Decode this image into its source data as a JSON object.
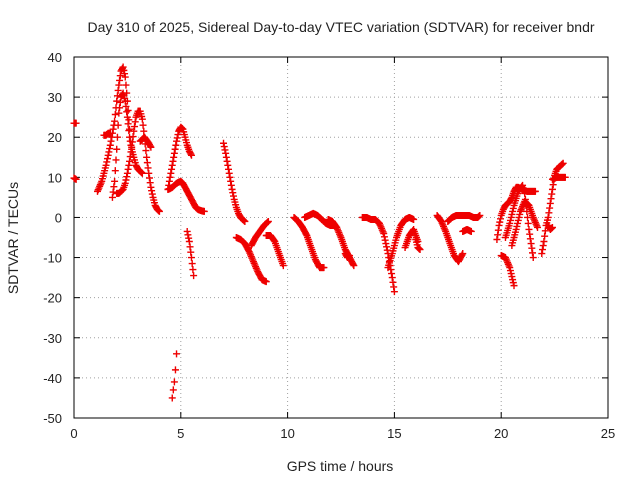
{
  "chart_data": {
    "type": "scatter",
    "title": "Day 310 of 2025, Sidereal Day-to-day VTEC variation (SDTVAR) for receiver bndr",
    "xlabel": "GPS time / hours",
    "ylabel": "SDTVAR / TECUs",
    "xlim": [
      0,
      25
    ],
    "ylim": [
      -50,
      40
    ],
    "xticks": [
      0,
      5,
      10,
      15,
      20,
      25
    ],
    "yticks": [
      -50,
      -40,
      -30,
      -20,
      -10,
      0,
      10,
      20,
      30,
      40
    ],
    "grid": true,
    "legend": "none",
    "marker": "+",
    "color": "#ee0000",
    "segments": [
      {
        "x": [
          0.0,
          0.1
        ],
        "y": [
          23.5,
          23.5
        ]
      },
      {
        "x": [
          0.0,
          0.1
        ],
        "y": [
          9.8,
          9.5
        ]
      },
      {
        "x": [
          1.1,
          1.3,
          1.5,
          1.7,
          1.9,
          2.0,
          2.1,
          2.2,
          2.3,
          2.4,
          2.5,
          2.6
        ],
        "y": [
          6.5,
          9.0,
          13.0,
          18.0,
          24.0,
          29.0,
          33.0,
          36.5,
          37.5,
          35.0,
          29.0,
          22.0
        ]
      },
      {
        "x": [
          1.4,
          1.5,
          1.6,
          1.7
        ],
        "y": [
          20.5,
          20.5,
          21.0,
          21.0
        ]
      },
      {
        "x": [
          1.8,
          1.9,
          2.0,
          2.1,
          2.2,
          2.3,
          2.4,
          2.5,
          2.6,
          2.7,
          2.8,
          2.9,
          3.0,
          3.1,
          3.2
        ],
        "y": [
          5.0,
          9.0,
          17.0,
          26.0,
          30.0,
          31.0,
          29.0,
          25.0,
          20.0,
          17.0,
          15.0,
          13.0,
          12.0,
          11.5,
          11.0
        ]
      },
      {
        "x": [
          2.0,
          2.1,
          2.2,
          2.3,
          2.4,
          2.5,
          2.6,
          2.7,
          2.8,
          2.9,
          3.0,
          3.1,
          3.2,
          3.3,
          3.4,
          3.5,
          3.6,
          3.7,
          3.8,
          3.9,
          4.0
        ],
        "y": [
          6.0,
          6.0,
          6.5,
          7.0,
          8.5,
          11.0,
          14.0,
          17.5,
          21.5,
          25.0,
          26.5,
          26.5,
          24.5,
          20.0,
          15.0,
          11.0,
          7.5,
          5.0,
          3.0,
          2.0,
          1.5
        ]
      },
      {
        "x": [
          3.1,
          3.3,
          3.5,
          3.6
        ],
        "y": [
          19.0,
          20.0,
          18.5,
          17.5
        ]
      },
      {
        "x": [
          4.4,
          4.5,
          4.6,
          4.7,
          4.8,
          4.9,
          5.0,
          5.1,
          5.2,
          5.3,
          5.4,
          5.5
        ],
        "y": [
          7.0,
          10.0,
          13.0,
          16.0,
          19.0,
          21.5,
          22.5,
          22.0,
          20.0,
          18.0,
          16.5,
          15.5
        ]
      },
      {
        "x": [
          4.4,
          4.5,
          4.6,
          4.7,
          4.8,
          4.9,
          5.0,
          5.1,
          5.2,
          5.3,
          5.4,
          5.5,
          5.6,
          5.7,
          5.8,
          5.9,
          6.0,
          6.1
        ],
        "y": [
          7.0,
          7.2,
          7.5,
          8.0,
          8.5,
          8.8,
          9.0,
          8.5,
          7.5,
          6.5,
          5.5,
          4.5,
          3.5,
          2.5,
          2.0,
          1.8,
          1.6,
          1.5
        ]
      },
      {
        "x": [
          5.3,
          5.4,
          5.5,
          5.6
        ],
        "y": [
          -3.5,
          -6.0,
          -10.0,
          -14.5
        ]
      },
      {
        "x": [
          4.6,
          4.65,
          4.7,
          4.75,
          4.8
        ],
        "y": [
          -45.0,
          -43.0,
          -41.0,
          -38.0,
          -34.0
        ]
      },
      {
        "x": [
          7.0,
          7.1,
          7.2,
          7.3,
          7.4,
          7.5,
          7.6,
          7.7,
          7.8,
          7.9,
          8.0
        ],
        "y": [
          18.5,
          16.0,
          13.0,
          10.0,
          7.0,
          4.5,
          2.5,
          1.0,
          0.0,
          -0.5,
          -1.0
        ]
      },
      {
        "x": [
          7.6,
          7.8,
          8.0,
          8.2,
          8.4,
          8.6,
          8.8,
          9.0
        ],
        "y": [
          -5.0,
          -5.5,
          -6.5,
          -8.5,
          -11.0,
          -13.5,
          -15.5,
          -16.0
        ]
      },
      {
        "x": [
          8.3,
          8.5,
          8.7,
          8.9,
          9.1
        ],
        "y": [
          -7.0,
          -5.0,
          -3.5,
          -2.0,
          -1.0
        ]
      },
      {
        "x": [
          9.0,
          9.2,
          9.4,
          9.6,
          9.8
        ],
        "y": [
          -4.5,
          -4.5,
          -6.0,
          -9.0,
          -12.0
        ]
      },
      {
        "x": [
          10.3,
          10.5,
          10.7,
          10.9,
          11.1,
          11.3,
          11.5,
          11.7
        ],
        "y": [
          0.0,
          -1.0,
          -2.5,
          -4.5,
          -7.5,
          -10.5,
          -12.5,
          -12.5
        ]
      },
      {
        "x": [
          10.8,
          11.0,
          11.2,
          11.4,
          11.6,
          11.8,
          12.0,
          12.2
        ],
        "y": [
          0.0,
          0.5,
          1.0,
          0.5,
          -0.5,
          -1.5,
          -2.0,
          -2.0
        ]
      },
      {
        "x": [
          11.9,
          12.1,
          12.3,
          12.5,
          12.7,
          12.9,
          13.1
        ],
        "y": [
          -0.5,
          -1.0,
          -2.5,
          -5.0,
          -8.0,
          -10.0,
          -12.0
        ]
      },
      {
        "x": [
          12.7,
          12.8,
          12.9
        ],
        "y": [
          -9.0,
          -10.0,
          -9.5
        ]
      },
      {
        "x": [
          13.5,
          13.7,
          13.9,
          14.1,
          14.3,
          14.5,
          14.7,
          14.9,
          15.0
        ],
        "y": [
          0.0,
          0.0,
          -0.5,
          -0.5,
          -1.5,
          -4.0,
          -9.0,
          -15.0,
          -18.5
        ]
      },
      {
        "x": [
          14.7,
          14.9,
          15.1,
          15.3,
          15.5,
          15.7,
          15.9
        ],
        "y": [
          -12.5,
          -9.0,
          -5.0,
          -2.0,
          -0.5,
          0.0,
          -0.5
        ]
      },
      {
        "x": [
          15.5,
          15.7,
          15.9,
          16.1
        ],
        "y": [
          -7.5,
          -4.5,
          -3.0,
          -6.0
        ]
      },
      {
        "x": [
          16.0,
          16.1,
          16.2
        ],
        "y": [
          -5.5,
          -7.5,
          -8.0
        ]
      },
      {
        "x": [
          17.0,
          17.2,
          17.4,
          17.6,
          17.8,
          18.0,
          18.2
        ],
        "y": [
          0.5,
          -1.0,
          -3.5,
          -6.5,
          -9.5,
          -11.0,
          -9.0
        ]
      },
      {
        "x": [
          17.5,
          17.7,
          17.9,
          18.1,
          18.3,
          18.5,
          18.7,
          18.9,
          19.0
        ],
        "y": [
          -1.0,
          0.0,
          0.5,
          0.5,
          0.5,
          0.5,
          0.0,
          0.0,
          0.5
        ]
      },
      {
        "x": [
          18.2,
          18.4,
          18.6
        ],
        "y": [
          -3.5,
          -3.0,
          -3.5
        ]
      },
      {
        "x": [
          19.8,
          19.9,
          20.0,
          20.1,
          20.2,
          20.3,
          20.4,
          20.5,
          20.6,
          20.7,
          20.8,
          21.0,
          21.2,
          21.4,
          21.6
        ],
        "y": [
          -5.5,
          -2.0,
          0.5,
          2.0,
          3.0,
          3.5,
          4.0,
          5.0,
          6.5,
          7.5,
          7.5,
          7.0,
          6.5,
          6.5,
          6.5
        ]
      },
      {
        "x": [
          20.0,
          20.2,
          20.4,
          20.6
        ],
        "y": [
          -9.5,
          -10.0,
          -12.5,
          -17.0
        ]
      },
      {
        "x": [
          20.2,
          20.4,
          20.6,
          20.8,
          21.0,
          21.1,
          21.2,
          21.3,
          21.4,
          21.5
        ],
        "y": [
          -5.0,
          -1.5,
          3.0,
          6.5,
          8.0,
          6.0,
          1.5,
          -3.0,
          -6.5,
          -10.0
        ]
      },
      {
        "x": [
          20.5,
          20.7,
          20.9,
          21.1,
          21.3,
          21.5,
          21.7
        ],
        "y": [
          -7.0,
          -3.0,
          1.5,
          4.0,
          3.0,
          0.0,
          -2.5
        ]
      },
      {
        "x": [
          21.9,
          22.0,
          22.1,
          22.2,
          22.3,
          22.4,
          22.5,
          22.6,
          22.7,
          22.8,
          22.9
        ],
        "y": [
          -9.0,
          -6.0,
          -2.0,
          0.0,
          3.5,
          7.0,
          10.5,
          12.0,
          12.5,
          13.0,
          13.5
        ]
      },
      {
        "x": [
          22.2,
          22.3,
          22.4
        ],
        "y": [
          -2.0,
          -3.0,
          -2.5
        ]
      },
      {
        "x": [
          22.4,
          22.6,
          22.8,
          23.0
        ],
        "y": [
          9.5,
          10.0,
          10.0,
          10.0
        ]
      }
    ]
  }
}
